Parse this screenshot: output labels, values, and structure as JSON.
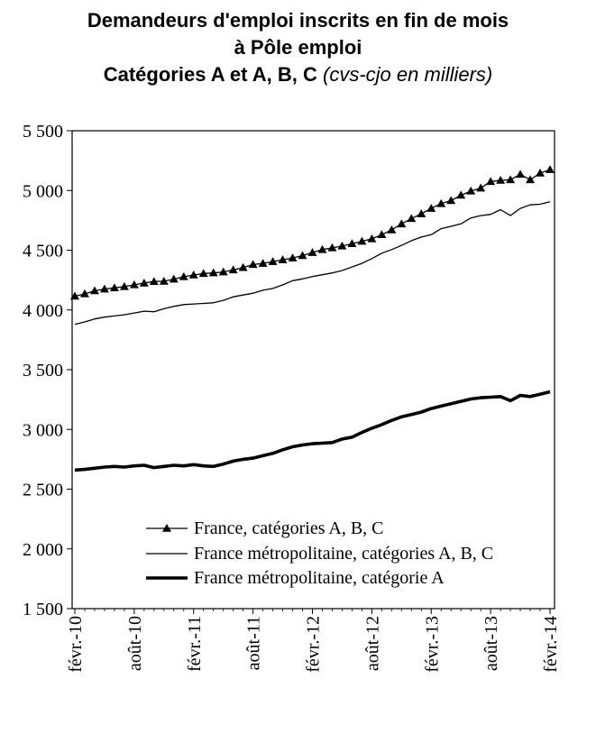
{
  "title": {
    "line1": "Demandeurs d'emploi inscrits en fin de mois",
    "line2": "à Pôle emploi",
    "line3": "Catégories A et A, B, C",
    "line3_unit": "(cvs-cjo en milliers)"
  },
  "chart_data": {
    "type": "line",
    "title": "Demandeurs d'emploi inscrits en fin de mois à Pôle emploi Catégories A et A, B, C (cvs-cjo en milliers)",
    "xlabel": "",
    "ylabel": "",
    "ylim": [
      1500,
      5500
    ],
    "yticks": [
      1500,
      2000,
      2500,
      3000,
      3500,
      4000,
      4500,
      5000,
      5500
    ],
    "ytick_labels": [
      "1 500",
      "2 000",
      "2 500",
      "3 000",
      "3 500",
      "4 000",
      "4 500",
      "5 000",
      "5 500"
    ],
    "xtick_labels": [
      "févr.-10",
      "août-10",
      "févr.-11",
      "août-11",
      "févr.-12",
      "août-12",
      "févr.-13",
      "août-13",
      "févr.-14"
    ],
    "x": [
      "2010-02",
      "2010-03",
      "2010-04",
      "2010-05",
      "2010-06",
      "2010-07",
      "2010-08",
      "2010-09",
      "2010-10",
      "2010-11",
      "2010-12",
      "2011-01",
      "2011-02",
      "2011-03",
      "2011-04",
      "2011-05",
      "2011-06",
      "2011-07",
      "2011-08",
      "2011-09",
      "2011-10",
      "2011-11",
      "2011-12",
      "2012-01",
      "2012-02",
      "2012-03",
      "2012-04",
      "2012-05",
      "2012-06",
      "2012-07",
      "2012-08",
      "2012-09",
      "2012-10",
      "2012-11",
      "2012-12",
      "2013-01",
      "2013-02",
      "2013-03",
      "2013-04",
      "2013-05",
      "2013-06",
      "2013-07",
      "2013-08",
      "2013-09",
      "2013-10",
      "2013-11",
      "2013-12",
      "2014-01",
      "2014-02"
    ],
    "grid": false,
    "legend_position": "bottom-center",
    "series": [
      {
        "name": "France, catégories A, B, C",
        "color": "#000000",
        "marker": "triangle",
        "line_width": "thin",
        "values": [
          4115,
          4135,
          4160,
          4175,
          4185,
          4195,
          4210,
          4225,
          4238,
          4240,
          4258,
          4278,
          4292,
          4305,
          4310,
          4318,
          4335,
          4355,
          4380,
          4390,
          4405,
          4420,
          4435,
          4455,
          4480,
          4505,
          4520,
          4535,
          4555,
          4575,
          4595,
          4630,
          4670,
          4720,
          4765,
          4805,
          4850,
          4890,
          4915,
          4960,
          4995,
          5020,
          5075,
          5085,
          5090,
          5135,
          5090,
          5145,
          5175
        ]
      },
      {
        "name": "France métropolitaine, catégories A, B, C",
        "color": "#000000",
        "marker": "none",
        "line_width": "thin",
        "values": [
          3880,
          3900,
          3925,
          3940,
          3950,
          3960,
          3975,
          3990,
          3985,
          4010,
          4030,
          4045,
          4050,
          4055,
          4060,
          4080,
          4110,
          4125,
          4140,
          4165,
          4180,
          4210,
          4245,
          4260,
          4280,
          4295,
          4310,
          4330,
          4360,
          4390,
          4430,
          4475,
          4505,
          4540,
          4580,
          4610,
          4630,
          4680,
          4700,
          4720,
          4770,
          4790,
          4800,
          4840,
          4790,
          4850,
          4880,
          4885,
          4905
        ]
      },
      {
        "name": "France métropolitaine, catégorie A",
        "color": "#000000",
        "marker": "none",
        "line_width": "thick",
        "values": [
          2660,
          2665,
          2675,
          2685,
          2690,
          2685,
          2695,
          2700,
          2680,
          2690,
          2700,
          2695,
          2705,
          2695,
          2690,
          2710,
          2735,
          2750,
          2760,
          2780,
          2800,
          2830,
          2855,
          2870,
          2880,
          2885,
          2890,
          2920,
          2935,
          2975,
          3010,
          3040,
          3075,
          3105,
          3125,
          3145,
          3175,
          3195,
          3215,
          3235,
          3255,
          3265,
          3270,
          3275,
          3240,
          3285,
          3275,
          3295,
          3315
        ]
      }
    ]
  }
}
